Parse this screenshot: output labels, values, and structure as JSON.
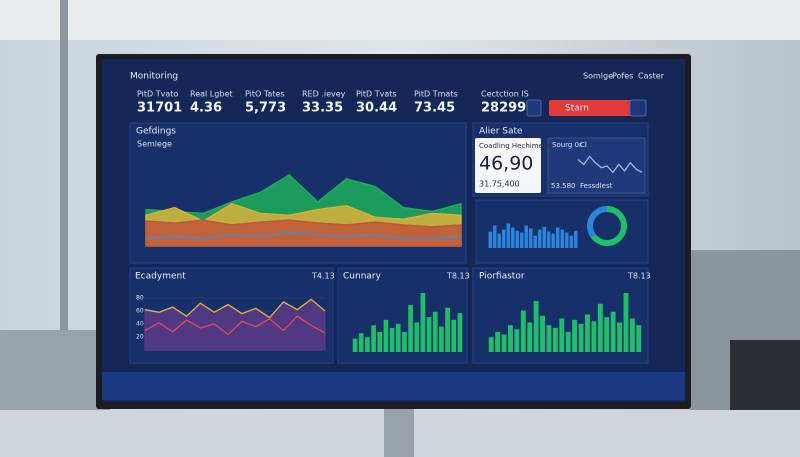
{
  "header": {
    "title": "Monitoring",
    "nav": [
      "Somlge",
      "Pofes",
      "Caster"
    ]
  },
  "kpis": [
    {
      "label": "PitD Tvato",
      "value": "31701"
    },
    {
      "label": "Real Lgbet",
      "value": "4.36"
    },
    {
      "label": "PitO Tates",
      "value": "5,773"
    },
    {
      "label": "RED .ievey",
      "value": "33.35"
    },
    {
      "label": "PitD Tvats",
      "value": "30.44"
    },
    {
      "label": "PitD Tmats",
      "value": "73.45"
    },
    {
      "label": "Cectction IS",
      "value": "28299"
    }
  ],
  "button": {
    "label": "Starn"
  },
  "area_panel": {
    "title": "Gefdings",
    "subtitle": "Semlege",
    "ylim": [
      0,
      100
    ],
    "series": [
      {
        "color": "#1fae5a",
        "values": [
          38,
          36,
          34,
          46,
          56,
          74,
          46,
          70,
          62,
          40,
          36,
          44
        ]
      },
      {
        "color": "#d9b23a",
        "values": [
          32,
          40,
          26,
          44,
          34,
          32,
          38,
          42,
          30,
          28,
          34,
          32
        ]
      },
      {
        "color": "#c2553a",
        "values": [
          26,
          24,
          27,
          22,
          25,
          27,
          24,
          22,
          25,
          22,
          20,
          22
        ]
      },
      {
        "color": "#3a8ee0",
        "values": [
          8,
          10,
          8,
          12,
          10,
          14,
          12,
          10,
          12,
          8,
          8,
          10
        ]
      }
    ]
  },
  "alert_panel": {
    "title": "Alier Sate",
    "card": {
      "label": "Coadling Hechimeles",
      "value": "46,90",
      "sub": "31.75,400"
    },
    "mini": {
      "label": "Sourg 0r",
      "tag": "Cl",
      "value": "53.580",
      "caption": "Fessdlest",
      "ylim": [
        0,
        100
      ],
      "values": [
        70,
        55,
        80,
        60,
        45,
        50,
        30,
        55,
        35,
        60,
        40,
        30
      ]
    }
  },
  "bars_panel": {
    "ylim": [
      0,
      100
    ],
    "color": "#2a86dc",
    "values": [
      40,
      55,
      35,
      45,
      60,
      50,
      42,
      38,
      55,
      48,
      30,
      45,
      52,
      40,
      35,
      50,
      45,
      38,
      30,
      42
    ],
    "donut": {
      "values": [
        65,
        35
      ],
      "colors": [
        "#1fbf6a",
        "#2a86dc"
      ]
    }
  },
  "trend_panel": {
    "title": "Ecadyment",
    "tag": "T4.13",
    "ylim": [
      0,
      100
    ],
    "yticks": [
      20,
      40,
      60,
      80
    ],
    "series": [
      {
        "color": "#e0b43a",
        "values": [
          62,
          58,
          66,
          52,
          72,
          58,
          70,
          56,
          64,
          50,
          74,
          62,
          78,
          60
        ]
      },
      {
        "color": "#e0485a",
        "values": [
          30,
          42,
          28,
          46,
          34,
          40,
          24,
          44,
          36,
          48,
          30,
          52,
          38,
          26
        ]
      }
    ]
  },
  "summary_panel": {
    "title": "Cunnary",
    "tag": "T8.13",
    "ylim": [
      0,
      100
    ],
    "color": "#1fbf6a",
    "values": [
      20,
      28,
      22,
      40,
      30,
      48,
      36,
      42,
      30,
      70,
      44,
      88,
      52,
      60,
      38,
      66,
      48,
      58
    ]
  },
  "profile_panel": {
    "title": "Piorfiastor",
    "tag": "T8.13",
    "ylim": [
      0,
      100
    ],
    "color": "#1fbf6a",
    "values": [
      22,
      30,
      26,
      40,
      34,
      62,
      44,
      76,
      54,
      40,
      36,
      50,
      30,
      48,
      42,
      56,
      46,
      72,
      52,
      60,
      44,
      88,
      50,
      40
    ]
  }
}
